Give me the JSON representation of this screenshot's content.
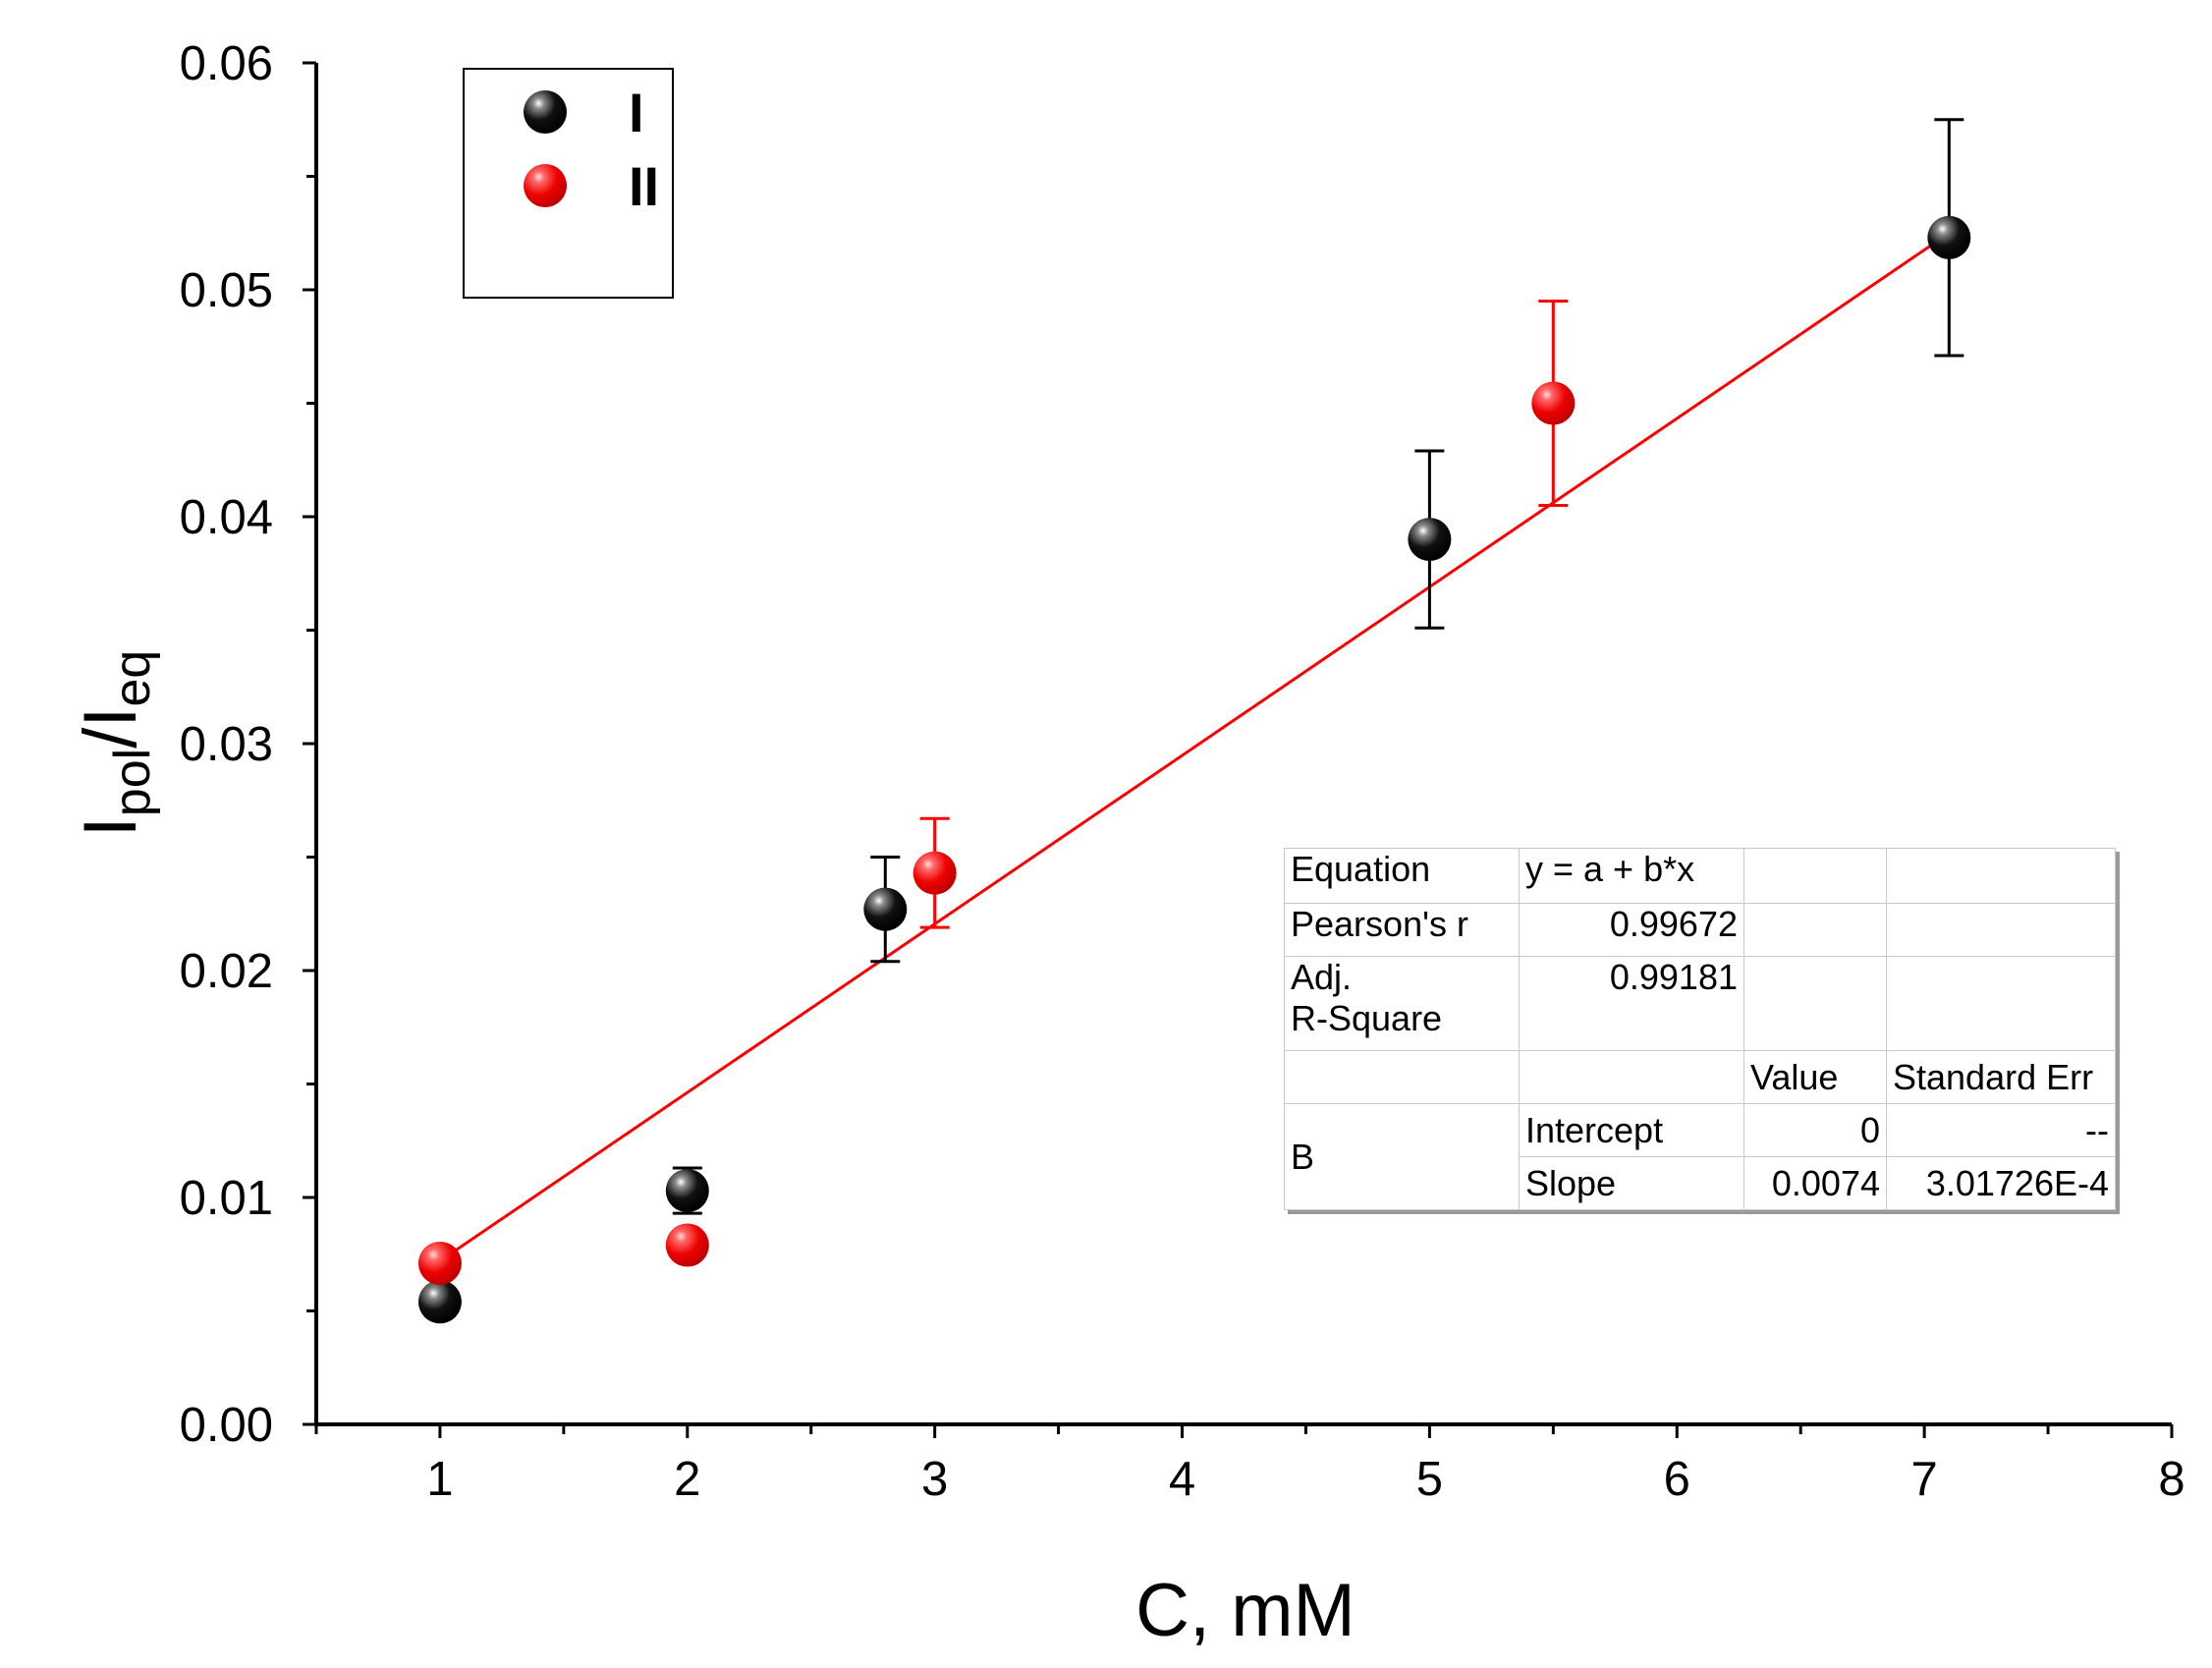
{
  "chart_data": {
    "type": "scatter",
    "title": "",
    "xlabel": "C, mM",
    "ylabel": {
      "main1": "I",
      "sub1": "pol",
      "slash": "/",
      "main2": "I",
      "sub2": "eq"
    },
    "xlim": [
      0.5,
      8
    ],
    "ylim": [
      0,
      0.06
    ],
    "x_ticks": [
      1,
      2,
      3,
      4,
      5,
      6,
      7,
      8
    ],
    "y_ticks": [
      0.0,
      0.01,
      0.02,
      0.03,
      0.04,
      0.05,
      0.06
    ],
    "y_tick_labels": [
      "0.00",
      "0.01",
      "0.02",
      "0.03",
      "0.04",
      "0.05",
      "0.06"
    ],
    "legend_position": "top-left",
    "series": [
      {
        "name": "I",
        "color": "#000000",
        "points": [
          {
            "x": 1.0,
            "y": 0.0054,
            "err": null
          },
          {
            "x": 2.0,
            "y": 0.0103,
            "err": 0.001
          },
          {
            "x": 2.8,
            "y": 0.0227,
            "err": 0.0023
          },
          {
            "x": 5.0,
            "y": 0.039,
            "err": 0.0039
          },
          {
            "x": 7.1,
            "y": 0.0523,
            "err": 0.0052
          }
        ]
      },
      {
        "name": "II",
        "color": "#ff0000",
        "points": [
          {
            "x": 1.0,
            "y": 0.0071,
            "err": null
          },
          {
            "x": 2.0,
            "y": 0.0079,
            "err": null
          },
          {
            "x": 3.0,
            "y": 0.0243,
            "err": 0.0024
          },
          {
            "x": 5.5,
            "y": 0.045,
            "err": 0.0045
          }
        ]
      }
    ],
    "fit_line": {
      "color": "#ff0000",
      "x": [
        1.0,
        7.1
      ],
      "y": [
        0.0072,
        0.0525
      ]
    },
    "fit_table": {
      "equation_label": "Equation",
      "equation": "y = a + b*x",
      "pearson_label": "Pearson's r",
      "pearson": "0.99672",
      "adj_label_1": "Adj.",
      "adj_label_2": "R-Square",
      "adj": "0.99181",
      "value_header": "Value",
      "stderr_header": "Standard Err",
      "group": "B",
      "intercept_label": "Intercept",
      "intercept_value": "0",
      "intercept_err": "--",
      "slope_label": "Slope",
      "slope_value": "0.0074",
      "slope_err": "3.01726E-4"
    }
  }
}
